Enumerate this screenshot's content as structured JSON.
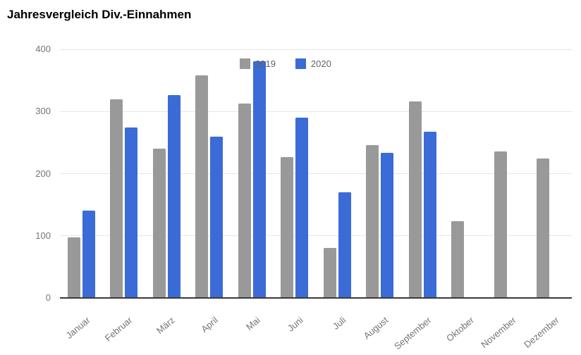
{
  "chart_data": {
    "type": "bar",
    "title": "Jahresvergleich Div.-Einnahmen",
    "categories": [
      "Januar",
      "Februar",
      "März",
      "April",
      "Mai",
      "Juni",
      "Juli",
      "August",
      "September",
      "Oktober",
      "November",
      "Dezember"
    ],
    "series": [
      {
        "name": "2019",
        "color": "#999999",
        "values": [
          98,
          320,
          240,
          358,
          313,
          227,
          81,
          246,
          316,
          123,
          236,
          224
        ]
      },
      {
        "name": "2020",
        "color": "#3b6bd6",
        "values": [
          140,
          274,
          326,
          259,
          381,
          290,
          170,
          234,
          268,
          0,
          0,
          0
        ]
      }
    ],
    "xlabel": "",
    "ylabel": "",
    "ylim": [
      0,
      400
    ],
    "yticks": [
      0,
      100,
      200,
      300,
      400
    ],
    "grid": true,
    "legend_position": "top-center",
    "colors": {
      "axis_label": "#757575",
      "legend_label": "#5f6368",
      "gridline": "#e6e6e6",
      "baseline": "#3a3a3a",
      "title": "#000000"
    }
  }
}
